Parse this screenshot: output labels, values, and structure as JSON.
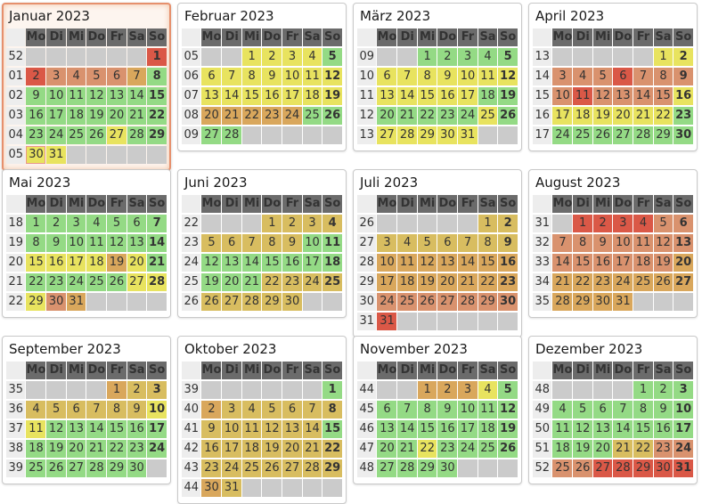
{
  "weekday_labels": [
    "Mo",
    "Di",
    "Mi",
    "Do",
    "Fr",
    "Sa",
    "So"
  ],
  "palette": {
    "G": "#94da85",
    "Y": "#e8e35f",
    "K": "#d8bd60",
    "A": "#d9a75c",
    "S": "#d9926e",
    "R": "#da5847",
    "E": "#cbcbcb"
  },
  "colors": {
    "header_bg": "#6b6b6b",
    "header_fg": "#ffffff",
    "weeknum_bg": "#ededed",
    "weeknum_fg": "#999999",
    "empty_bg": "#cbcbcb",
    "holiday_fg": "#cc2f00",
    "highlight_border": "#e6906d",
    "highlight_glow": "#f2c5a8",
    "today_border": "#e8978a"
  },
  "months": [
    {
      "title": "Januar 2023",
      "highlighted": true,
      "weeks": [
        {
          "n": "52",
          "d": [
            "",
            "",
            "",
            "",
            "",
            "",
            "1:R:h"
          ]
        },
        {
          "n": "01",
          "d": [
            "2:R",
            "3:S",
            "4:S",
            "5:S",
            "6:S:h",
            "7:A",
            "8:G"
          ]
        },
        {
          "n": "02",
          "d": [
            "9:G",
            "10:G",
            "11:G",
            "12:G",
            "13:G",
            "14:G",
            "15:G"
          ]
        },
        {
          "n": "03",
          "d": [
            "16:G",
            "17:G",
            "18:G",
            "19:G",
            "20:G",
            "21:G",
            "22:G"
          ]
        },
        {
          "n": "04",
          "d": [
            "23:G",
            "24:G",
            "25:G",
            "26:G",
            "27:Y",
            "28:G",
            "29:G"
          ]
        },
        {
          "n": "05",
          "d": [
            "30:Y:t",
            "31:Y",
            "",
            "",
            "",
            "",
            ""
          ]
        }
      ]
    },
    {
      "title": "Februar 2023",
      "highlighted": false,
      "weeks": [
        {
          "n": "05",
          "d": [
            "",
            "",
            "1:Y",
            "2:Y",
            "3:Y",
            "4:Y",
            "5:G"
          ]
        },
        {
          "n": "06",
          "d": [
            "6:Y",
            "7:Y",
            "8:Y",
            "9:Y",
            "10:Y",
            "11:Y",
            "12:Y"
          ]
        },
        {
          "n": "07",
          "d": [
            "13:Y",
            "14:Y",
            "15:Y",
            "16:Y",
            "17:Y",
            "18:Y",
            "19:Y"
          ]
        },
        {
          "n": "08",
          "d": [
            "20:A",
            "21:A",
            "22:A",
            "23:A",
            "24:A",
            "25:G",
            "26:G"
          ]
        },
        {
          "n": "09",
          "d": [
            "27:G",
            "28:G",
            "",
            "",
            "",
            "",
            ""
          ]
        }
      ]
    },
    {
      "title": "März 2023",
      "highlighted": false,
      "weeks": [
        {
          "n": "09",
          "d": [
            "",
            "",
            "1:G",
            "2:G",
            "3:G",
            "4:G",
            "5:G"
          ]
        },
        {
          "n": "10",
          "d": [
            "6:Y",
            "7:Y",
            "8:Y:h",
            "9:Y",
            "10:Y",
            "11:Y",
            "12:Y"
          ]
        },
        {
          "n": "11",
          "d": [
            "13:Y",
            "14:Y",
            "15:Y",
            "16:Y",
            "17:Y",
            "18:G",
            "19:G"
          ]
        },
        {
          "n": "12",
          "d": [
            "20:G",
            "21:G",
            "22:G",
            "23:G",
            "24:G",
            "25:Y",
            "26:G"
          ]
        },
        {
          "n": "13",
          "d": [
            "27:Y",
            "28:Y",
            "29:Y",
            "30:Y",
            "31:Y",
            "",
            ""
          ]
        }
      ]
    },
    {
      "title": "April 2023",
      "highlighted": false,
      "weeks": [
        {
          "n": "13",
          "d": [
            "",
            "",
            "",
            "",
            "",
            "1:Y",
            "2:Y"
          ]
        },
        {
          "n": "14",
          "d": [
            "3:S",
            "4:S",
            "5:S",
            "6:R",
            "7:S:h",
            "8:S",
            "9:S:h"
          ]
        },
        {
          "n": "15",
          "d": [
            "10:S:h",
            "11:R",
            "12:S",
            "13:S",
            "14:S",
            "15:S",
            "16:Y"
          ]
        },
        {
          "n": "16",
          "d": [
            "17:Y",
            "18:Y",
            "19:Y",
            "20:Y",
            "21:Y",
            "22:Y",
            "23:G"
          ]
        },
        {
          "n": "17",
          "d": [
            "24:G",
            "25:G",
            "26:G",
            "27:G",
            "28:G",
            "29:G",
            "30:G"
          ]
        }
      ]
    },
    {
      "title": "Mai 2023",
      "highlighted": false,
      "weeks": [
        {
          "n": "18",
          "d": [
            "1:G:h",
            "2:G",
            "3:G",
            "4:G",
            "5:G",
            "6:G",
            "7:G"
          ]
        },
        {
          "n": "19",
          "d": [
            "8:G",
            "9:G",
            "10:G",
            "11:G",
            "12:G",
            "13:G",
            "14:G"
          ]
        },
        {
          "n": "20",
          "d": [
            "15:Y",
            "16:Y",
            "17:Y",
            "18:Y:h",
            "19:A",
            "20:Y",
            "21:G"
          ]
        },
        {
          "n": "21",
          "d": [
            "22:G",
            "23:G",
            "24:G",
            "25:G",
            "26:G",
            "27:Y",
            "28:Y:h"
          ]
        },
        {
          "n": "22",
          "d": [
            "29:Y:h",
            "30:S",
            "31:A",
            "",
            "",
            "",
            ""
          ]
        }
      ]
    },
    {
      "title": "Juni 2023",
      "highlighted": false,
      "weeks": [
        {
          "n": "22",
          "d": [
            "",
            "",
            "",
            "1:K",
            "2:K",
            "3:K",
            "4:K"
          ]
        },
        {
          "n": "23",
          "d": [
            "5:K",
            "6:K",
            "7:K",
            "8:K:h",
            "9:K",
            "10:G",
            "11:G"
          ]
        },
        {
          "n": "24",
          "d": [
            "12:G",
            "13:G",
            "14:G",
            "15:G",
            "16:G",
            "17:G",
            "18:G"
          ]
        },
        {
          "n": "25",
          "d": [
            "19:G",
            "20:G",
            "21:G",
            "22:K",
            "23:K",
            "24:K",
            "25:K"
          ]
        },
        {
          "n": "26",
          "d": [
            "26:K",
            "27:K",
            "28:K",
            "29:K",
            "30:K",
            "",
            ""
          ]
        }
      ]
    },
    {
      "title": "Juli 2023",
      "highlighted": false,
      "weeks": [
        {
          "n": "26",
          "d": [
            "",
            "",
            "",
            "",
            "",
            "1:K",
            "2:K"
          ]
        },
        {
          "n": "27",
          "d": [
            "3:K",
            "4:K",
            "5:K",
            "6:K",
            "7:K",
            "8:K",
            "9:K"
          ]
        },
        {
          "n": "28",
          "d": [
            "10:A",
            "11:A",
            "12:A",
            "13:A",
            "14:A",
            "15:A",
            "16:A"
          ]
        },
        {
          "n": "29",
          "d": [
            "17:A",
            "18:A",
            "19:A",
            "20:A",
            "21:A",
            "22:A",
            "23:A"
          ]
        },
        {
          "n": "30",
          "d": [
            "24:S",
            "25:S",
            "26:S",
            "27:S",
            "28:S",
            "29:S",
            "30:S"
          ]
        },
        {
          "n": "31",
          "d": [
            "31:R",
            "",
            "",
            "",
            "",
            "",
            ""
          ]
        }
      ]
    },
    {
      "title": "August 2023",
      "highlighted": false,
      "weeks": [
        {
          "n": "31",
          "d": [
            "",
            "1:R",
            "2:R",
            "3:R",
            "4:R",
            "5:S",
            "6:S"
          ]
        },
        {
          "n": "32",
          "d": [
            "7:S",
            "8:S",
            "9:S",
            "10:S",
            "11:S",
            "12:S",
            "13:S"
          ]
        },
        {
          "n": "33",
          "d": [
            "14:S",
            "15:S:h",
            "16:S",
            "17:S",
            "18:S",
            "19:S",
            "20:A"
          ]
        },
        {
          "n": "34",
          "d": [
            "21:A",
            "22:A",
            "23:A",
            "24:A",
            "25:A",
            "26:A",
            "27:A"
          ]
        },
        {
          "n": "35",
          "d": [
            "28:A",
            "29:A",
            "30:A",
            "31:A",
            "",
            "",
            ""
          ]
        }
      ]
    },
    {
      "title": "September 2023",
      "highlighted": false,
      "weeks": [
        {
          "n": "35",
          "d": [
            "",
            "",
            "",
            "",
            "1:A",
            "2:K",
            "3:K"
          ]
        },
        {
          "n": "36",
          "d": [
            "4:K",
            "5:K",
            "6:K",
            "7:K",
            "8:K",
            "9:K",
            "10:Y"
          ]
        },
        {
          "n": "37",
          "d": [
            "11:Y",
            "12:G",
            "13:G",
            "14:G",
            "15:G",
            "16:G",
            "17:G"
          ]
        },
        {
          "n": "38",
          "d": [
            "18:G",
            "19:G",
            "20:G:h",
            "21:G",
            "22:G",
            "23:G",
            "24:G"
          ]
        },
        {
          "n": "39",
          "d": [
            "25:G",
            "26:G",
            "27:G",
            "28:G",
            "29:G",
            "30:G",
            ""
          ]
        }
      ]
    },
    {
      "title": "Oktober 2023",
      "highlighted": false,
      "weeks": [
        {
          "n": "39",
          "d": [
            "",
            "",
            "",
            "",
            "",
            "",
            "1:G"
          ]
        },
        {
          "n": "40",
          "d": [
            "2:A",
            "3:K:h",
            "4:K",
            "5:K",
            "6:K",
            "7:K",
            "8:K"
          ]
        },
        {
          "n": "41",
          "d": [
            "9:K",
            "10:K",
            "11:K",
            "12:K",
            "13:K",
            "14:K",
            "15:G"
          ]
        },
        {
          "n": "42",
          "d": [
            "16:K",
            "17:K",
            "18:K",
            "19:K",
            "20:K",
            "21:K",
            "22:K"
          ]
        },
        {
          "n": "43",
          "d": [
            "23:K",
            "24:K",
            "25:K",
            "26:K",
            "27:K",
            "28:K",
            "29:K"
          ]
        },
        {
          "n": "44",
          "d": [
            "30:A",
            "31:K:h",
            "",
            "",
            "",
            "",
            ""
          ]
        }
      ]
    },
    {
      "title": "November 2023",
      "highlighted": false,
      "weeks": [
        {
          "n": "44",
          "d": [
            "",
            "",
            "1:A:h",
            "2:A",
            "3:A",
            "4:Y",
            "5:G"
          ]
        },
        {
          "n": "45",
          "d": [
            "6:G",
            "7:G",
            "8:G",
            "9:G",
            "10:G",
            "11:G",
            "12:G"
          ]
        },
        {
          "n": "46",
          "d": [
            "13:G",
            "14:G",
            "15:G",
            "16:G",
            "17:G",
            "18:G",
            "19:G"
          ]
        },
        {
          "n": "47",
          "d": [
            "20:G",
            "21:G",
            "22:Y:h",
            "23:G",
            "24:G",
            "25:G",
            "26:G"
          ]
        },
        {
          "n": "48",
          "d": [
            "27:G",
            "28:G",
            "29:G",
            "30:G",
            "",
            "",
            ""
          ]
        }
      ]
    },
    {
      "title": "Dezember 2023",
      "highlighted": false,
      "weeks": [
        {
          "n": "48",
          "d": [
            "",
            "",
            "",
            "",
            "1:G",
            "2:G",
            "3:G"
          ]
        },
        {
          "n": "49",
          "d": [
            "4:G",
            "5:G",
            "6:G",
            "7:G",
            "8:G",
            "9:G",
            "10:G"
          ]
        },
        {
          "n": "50",
          "d": [
            "11:G",
            "12:G",
            "13:G",
            "14:G",
            "15:G",
            "16:G",
            "17:G"
          ]
        },
        {
          "n": "51",
          "d": [
            "18:G",
            "19:G",
            "20:G",
            "21:K",
            "22:K",
            "23:S",
            "24:S"
          ]
        },
        {
          "n": "52",
          "d": [
            "25:S:h",
            "26:S:h",
            "27:R",
            "28:R",
            "29:R",
            "30:R",
            "31:R"
          ]
        }
      ]
    }
  ]
}
